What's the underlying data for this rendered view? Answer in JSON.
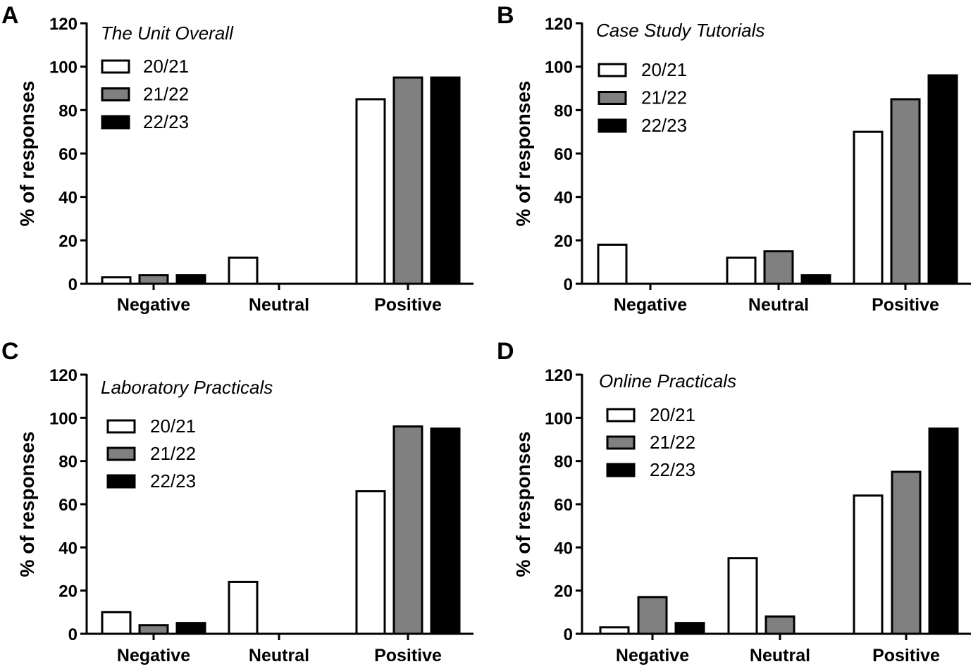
{
  "colors": {
    "series_fills": [
      "#ffffff",
      "#808080",
      "#000000"
    ],
    "stroke": "#000000"
  },
  "chart_data": [
    {
      "type": "bar",
      "panel": "A",
      "title": "The Unit Overall",
      "ylabel": "% of responses",
      "xlabel": "",
      "ylim": [
        0,
        120
      ],
      "yticks": [
        0,
        20,
        40,
        60,
        80,
        100,
        120
      ],
      "categories": [
        "Negative",
        "Neutral",
        "Positive"
      ],
      "legend_position": "top-left",
      "series": [
        {
          "name": "20/21",
          "values": [
            3,
            12,
            85
          ]
        },
        {
          "name": "21/22",
          "values": [
            4,
            0,
            95
          ]
        },
        {
          "name": "22/23",
          "values": [
            4,
            0,
            95
          ]
        }
      ]
    },
    {
      "type": "bar",
      "panel": "B",
      "title": "Case Study Tutorials",
      "ylabel": "% of responses",
      "xlabel": "",
      "ylim": [
        0,
        120
      ],
      "yticks": [
        0,
        20,
        40,
        60,
        80,
        100,
        120
      ],
      "categories": [
        "Negative",
        "Neutral",
        "Positive"
      ],
      "legend_position": "top-left",
      "series": [
        {
          "name": "20/21",
          "values": [
            18,
            12,
            70
          ]
        },
        {
          "name": "21/22",
          "values": [
            0,
            15,
            85
          ]
        },
        {
          "name": "22/23",
          "values": [
            0,
            4,
            96
          ]
        }
      ]
    },
    {
      "type": "bar",
      "panel": "C",
      "title": "Laboratory Practicals",
      "ylabel": "% of responses",
      "xlabel": "",
      "ylim": [
        0,
        120
      ],
      "yticks": [
        0,
        20,
        40,
        60,
        80,
        100,
        120
      ],
      "categories": [
        "Negative",
        "Neutral",
        "Positive"
      ],
      "legend_position": "top-left",
      "series": [
        {
          "name": "20/21",
          "values": [
            10,
            24,
            66
          ]
        },
        {
          "name": "21/22",
          "values": [
            4,
            0,
            96
          ]
        },
        {
          "name": "22/23",
          "values": [
            5,
            0,
            95
          ]
        }
      ]
    },
    {
      "type": "bar",
      "panel": "D",
      "title": "Online Practicals",
      "ylabel": "% of responses",
      "xlabel": "",
      "ylim": [
        0,
        120
      ],
      "yticks": [
        0,
        20,
        40,
        60,
        80,
        100,
        120
      ],
      "categories": [
        "Negative",
        "Neutral",
        "Positive"
      ],
      "legend_position": "top-left",
      "series": [
        {
          "name": "20/21",
          "values": [
            3,
            35,
            64
          ]
        },
        {
          "name": "21/22",
          "values": [
            17,
            8,
            75
          ]
        },
        {
          "name": "22/23",
          "values": [
            5,
            0,
            95
          ]
        }
      ]
    }
  ]
}
